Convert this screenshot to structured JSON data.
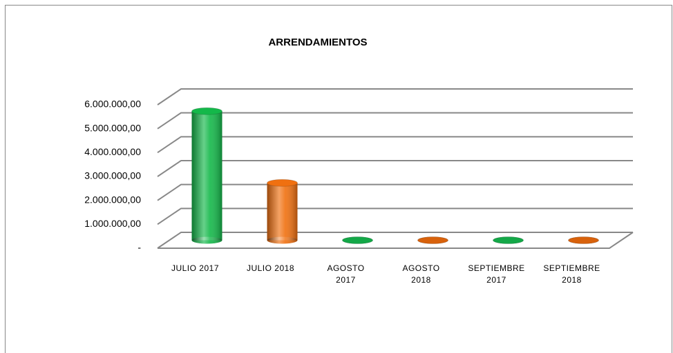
{
  "chart_data": {
    "type": "bar3d",
    "title": "ARRENDAMIENTOS",
    "categories": [
      "JULIO 2017",
      "JULIO 2018",
      "AGOSTO\n2017",
      "AGOSTO\n2018",
      "SEPTIEMBRE\n2017",
      "SEPTIEMBRE\n2018"
    ],
    "values": [
      5400000,
      2400000,
      0,
      0,
      0,
      0
    ],
    "colors": [
      "#14b84a",
      "#f07010",
      "#14a848",
      "#d8620c",
      "#14a848",
      "#d8620c"
    ],
    "ylim": [
      0,
      6000000
    ],
    "yticks": [
      {
        "value": 0,
        "label": "-"
      },
      {
        "value": 1000000,
        "label": "1.000.000,00"
      },
      {
        "value": 2000000,
        "label": "2.000.000,00"
      },
      {
        "value": 3000000,
        "label": "3.000.000,00"
      },
      {
        "value": 4000000,
        "label": "4.000.000,00"
      },
      {
        "value": 5000000,
        "label": "5.000.000,00"
      },
      {
        "value": 6000000,
        "label": "6.000.000,00"
      }
    ],
    "grid": true
  }
}
